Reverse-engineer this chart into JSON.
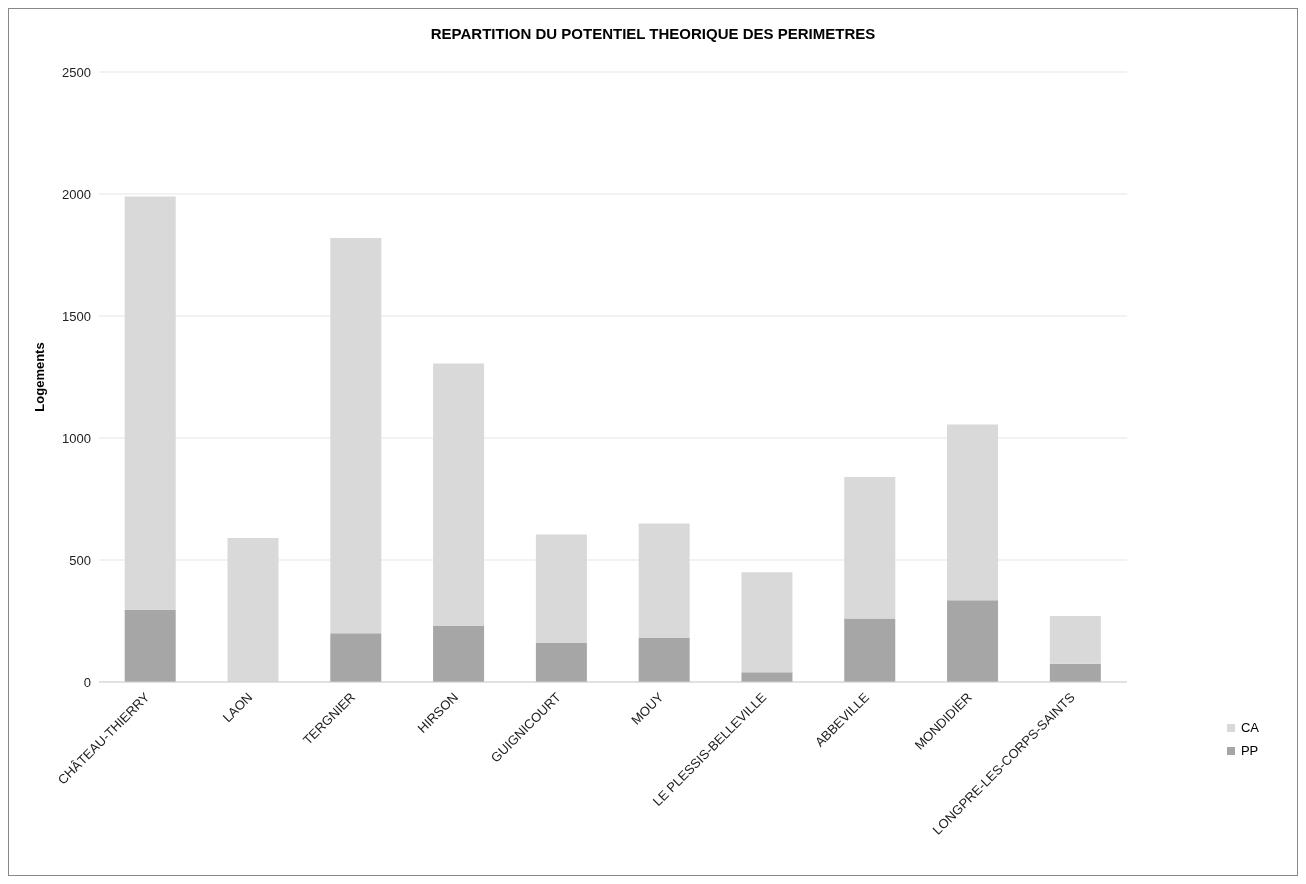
{
  "chart_data": {
    "type": "bar",
    "title": "REPARTITION DU POTENTIEL THEORIQUE DES PERIMETRES",
    "ylabel": "Logements",
    "categories": [
      "CHÂTEAU-THIERRY",
      "LAON",
      "TERGNIER",
      "HIRSON",
      "GUIGNICOURT",
      "MOUY",
      "LE PLESSIS-BELLEVILLE",
      "ABBEVILLE",
      "MONDIDIER",
      "LONGPRE-LES-CORPS-SAINTS"
    ],
    "stacked": true,
    "series": [
      {
        "name": "PP",
        "color": "#a6a6a6",
        "values": [
          295,
          0,
          200,
          230,
          160,
          180,
          40,
          260,
          335,
          75
        ]
      },
      {
        "name": "CA",
        "color": "#d9d9d9",
        "values": [
          1695,
          590,
          1620,
          1075,
          445,
          470,
          410,
          580,
          720,
          195
        ]
      }
    ],
    "ylim": [
      0,
      2500
    ],
    "yticks": [
      0,
      500,
      1000,
      1500,
      2000,
      2500
    ],
    "grid": "y",
    "legend": "right"
  }
}
